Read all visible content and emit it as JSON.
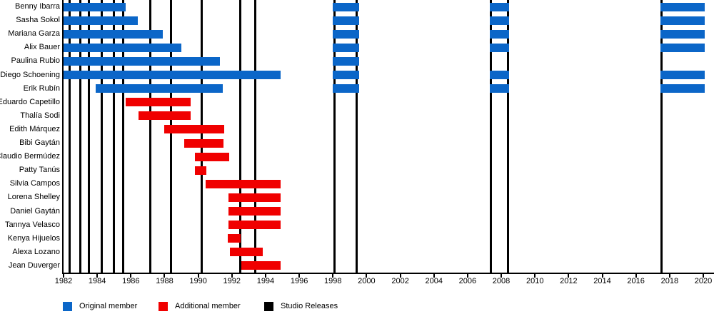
{
  "chart_data": {
    "type": "timeline",
    "x_axis": {
      "min": 1982,
      "max": 2020,
      "tick_step": 2,
      "ticks": [
        1982,
        1984,
        1986,
        1988,
        1990,
        1992,
        1994,
        1996,
        1998,
        2000,
        2002,
        2004,
        2006,
        2008,
        2010,
        2012,
        2014,
        2016,
        2018,
        2020
      ]
    },
    "members": [
      {
        "name": "Benny Ibarra",
        "role": "original",
        "stints": [
          [
            1982.0,
            1985.7
          ],
          [
            1998.0,
            1999.55
          ],
          [
            2007.3,
            2008.45
          ],
          [
            2017.45,
            2020.08
          ]
        ]
      },
      {
        "name": "Sasha Sokol",
        "role": "original",
        "stints": [
          [
            1982.0,
            1986.4
          ],
          [
            1998.0,
            1999.55
          ],
          [
            2007.3,
            2008.45
          ],
          [
            2017.45,
            2020.08
          ]
        ]
      },
      {
        "name": "Mariana Garza",
        "role": "original",
        "stints": [
          [
            1982.0,
            1987.9
          ],
          [
            1998.0,
            1999.55
          ],
          [
            2007.3,
            2008.45
          ],
          [
            2017.45,
            2020.08
          ]
        ]
      },
      {
        "name": "Alix Bauer",
        "role": "original",
        "stints": [
          [
            1982.0,
            1989.0
          ],
          [
            1998.0,
            1999.55
          ],
          [
            2007.3,
            2008.45
          ],
          [
            2017.45,
            2020.08
          ]
        ]
      },
      {
        "name": "Paulina Rubio",
        "role": "original",
        "stints": [
          [
            1982.0,
            1991.3
          ],
          [
            1998.0,
            1999.55
          ]
        ]
      },
      {
        "name": "Diego Schoening",
        "role": "original",
        "stints": [
          [
            1982.0,
            1994.9
          ],
          [
            1998.0,
            1999.55
          ],
          [
            2007.3,
            2008.45
          ],
          [
            2017.45,
            2020.08
          ]
        ]
      },
      {
        "name": "Erik Rubín",
        "role": "original",
        "stints": [
          [
            1983.9,
            1991.45
          ],
          [
            1998.0,
            1999.55
          ],
          [
            2007.3,
            2008.45
          ],
          [
            2017.45,
            2020.08
          ]
        ]
      },
      {
        "name": "Eduardo Capetillo",
        "role": "additional",
        "stints": [
          [
            1985.7,
            1989.55
          ]
        ]
      },
      {
        "name": "Thalía Sodi",
        "role": "additional",
        "stints": [
          [
            1986.45,
            1989.55
          ]
        ]
      },
      {
        "name": "Edith Márquez",
        "role": "additional",
        "stints": [
          [
            1988.0,
            1991.55
          ]
        ]
      },
      {
        "name": "Bibi Gaytán",
        "role": "additional",
        "stints": [
          [
            1989.15,
            1991.5
          ]
        ]
      },
      {
        "name": "Claudio Bermúdez",
        "role": "additional",
        "stints": [
          [
            1989.8,
            1991.85
          ]
        ]
      },
      {
        "name": "Patty Tanús",
        "role": "additional",
        "stints": [
          [
            1989.8,
            1990.5
          ]
        ]
      },
      {
        "name": "Silvia Campos",
        "role": "additional",
        "stints": [
          [
            1990.45,
            1994.9
          ]
        ]
      },
      {
        "name": "Lorena Shelley",
        "role": "additional",
        "stints": [
          [
            1991.8,
            1994.9
          ]
        ]
      },
      {
        "name": "Daniel Gaytán",
        "role": "additional",
        "stints": [
          [
            1991.8,
            1994.9
          ]
        ]
      },
      {
        "name": "Tannya Velasco",
        "role": "additional",
        "stints": [
          [
            1991.8,
            1994.9
          ]
        ]
      },
      {
        "name": "Kenya Hijuelos",
        "role": "additional",
        "stints": [
          [
            1991.75,
            1992.5
          ]
        ]
      },
      {
        "name": "Alexa Lozano",
        "role": "additional",
        "stints": [
          [
            1991.9,
            1993.85
          ]
        ]
      },
      {
        "name": "Jean Duverger",
        "role": "additional",
        "stints": [
          [
            1992.55,
            1994.9
          ]
        ]
      }
    ],
    "studio_releases": [
      1982.35,
      1982.98,
      1983.5,
      1984.25,
      1985.0,
      1985.55,
      1987.15,
      1988.4,
      1990.2,
      1992.5,
      1993.4,
      1998.08,
      1999.42,
      2007.4,
      2008.4,
      2017.5
    ],
    "colors": {
      "original": "#0b66c8",
      "additional": "#f00000",
      "releases": "#000000",
      "background": "#ffffff"
    },
    "legend": [
      {
        "label": "Original member",
        "color": "#0b66c8"
      },
      {
        "label": "Additional member",
        "color": "#f00000"
      },
      {
        "label": "Studio Releases",
        "color": "#000000"
      }
    ]
  }
}
